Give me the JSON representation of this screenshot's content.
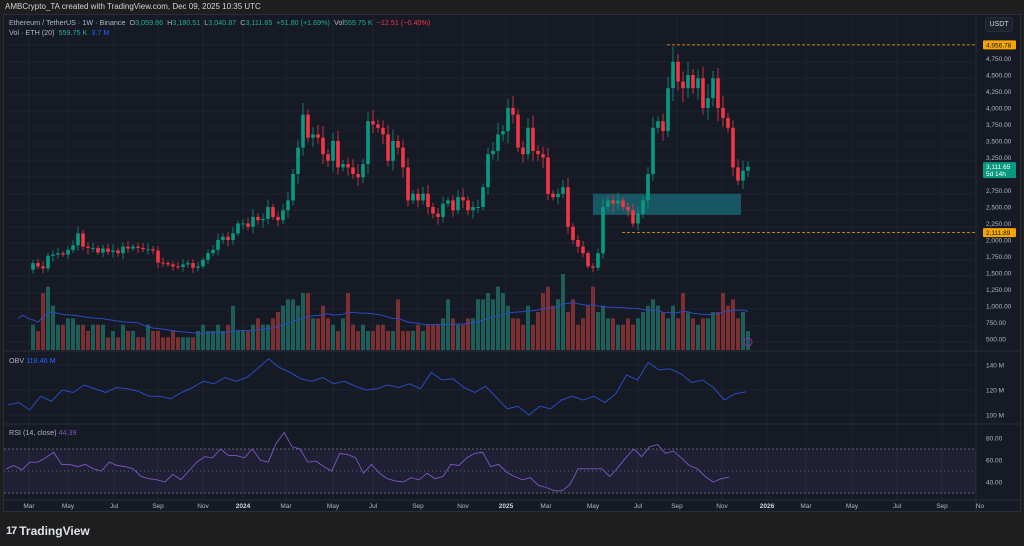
{
  "header": {
    "attribution": "AMBCrypto_TA created with TradingView.com, Dec 09, 2025 10:35 UTC"
  },
  "legend": {
    "symbol": "Ethereum / TetherUS · 1W · Binance",
    "o_label": "O",
    "o": "3,059.86",
    "h_label": "H",
    "h": "3,180.51",
    "l_label": "L",
    "l": "3,040.87",
    "c_label": "C",
    "c": "3,111.65",
    "change": "+51.80 (+1.69%)",
    "vol_label": "Vol",
    "vol": "559.75 K",
    "vol_change": "−12.51 (−0.40%)",
    "vol_ind": "Vol · ETH (20)",
    "vol_ind_val1": "559.75 K",
    "vol_ind_val2": "3.7 M",
    "obv": "OBV",
    "obv_val": "118.46 M",
    "rsi": "RSI (14, close)",
    "rsi_val": "44.39"
  },
  "currency": "USDT",
  "price_axis": [
    "4,750.00",
    "4,500.00",
    "4,250.00",
    "4,000.00",
    "3,750.00",
    "3,500.00",
    "3,250.00",
    "2,750.00",
    "2,500.00",
    "2,250.00",
    "2,000.00",
    "1,750.00",
    "1,500.00",
    "1,250.00",
    "1,000.00",
    "750.00",
    "500.00"
  ],
  "price_axis_values": [
    4750,
    4500,
    4250,
    4000,
    3750,
    3500,
    3250,
    2750,
    2500,
    2250,
    2000,
    1750,
    1500,
    1250,
    1000,
    750,
    500
  ],
  "markers": {
    "high": "4,956.78",
    "high_value": 4956.78,
    "low": "2,111.89",
    "low_value": 2111.89,
    "last": "3,111.65",
    "last_value": 3111.65,
    "countdown": "5d 14h"
  },
  "obv_axis": [
    "140 M",
    "120 M",
    "100 M"
  ],
  "rsi_axis": [
    "80.00",
    "60.00",
    "40.00"
  ],
  "time_axis": [
    "Mar",
    "May",
    "Jul",
    "Sep",
    "Nov",
    "2024",
    "Mar",
    "May",
    "Jul",
    "Sep",
    "Nov",
    "2025",
    "Mar",
    "May",
    "Jul",
    "Sep",
    "Nov",
    "2026",
    "Mar",
    "May",
    "Jul",
    "Sep",
    "No"
  ],
  "footer": {
    "brand": "TradingView"
  },
  "colors": {
    "up": "#089981",
    "down": "#f23645",
    "obv": "#2a4bc0",
    "rsi": "#7e57c2",
    "marker": "#f7a600",
    "zone": "#1b6b78"
  },
  "chart_data": {
    "type": "candlestick",
    "interval": "1W",
    "closes": [
      1550,
      1650,
      1600,
      1570,
      1760,
      1780,
      1800,
      1780,
      1850,
      1920,
      2100,
      1900,
      1880,
      1880,
      1810,
      1870,
      1820,
      1840,
      1800,
      1900,
      1870,
      1900,
      1880,
      1860,
      1860,
      1840,
      1660,
      1650,
      1630,
      1600,
      1590,
      1630,
      1650,
      1580,
      1600,
      1700,
      1800,
      1850,
      2000,
      2050,
      2000,
      2100,
      2250,
      2250,
      2200,
      2350,
      2300,
      2320,
      2500,
      2350,
      2300,
      2450,
      2600,
      3000,
      3400,
      3900,
      3550,
      3600,
      3550,
      3300,
      3200,
      3500,
      3100,
      3150,
      3100,
      3000,
      2950,
      3150,
      3800,
      3750,
      3700,
      3600,
      3200,
      3500,
      3400,
      3100,
      2600,
      2700,
      2600,
      2700,
      2500,
      2400,
      2350,
      2550,
      2600,
      2450,
      2650,
      2600,
      2450,
      2500,
      2500,
      2800,
      3300,
      3350,
      3600,
      3650,
      4000,
      3900,
      3400,
      3300,
      3700,
      3350,
      3300,
      3250,
      2700,
      2650,
      2700,
      2800,
      2200,
      2000,
      1900,
      1800,
      1600,
      1580,
      1800,
      2500,
      2600,
      2550,
      2600,
      2500,
      2450,
      2250,
      2400,
      2600,
      3000,
      3700,
      3800,
      3650,
      4300,
      4700,
      4400,
      4300,
      4500,
      4300,
      4450,
      4000,
      4150,
      4450,
      4000,
      3850,
      3700,
      3100,
      2900,
      3050,
      3111.65
    ],
    "volumes_m": [
      5,
      6,
      4,
      4,
      3,
      9,
      10,
      7,
      4,
      4,
      5,
      5,
      4,
      4,
      3,
      4,
      4,
      4,
      2,
      3,
      2,
      4,
      3,
      3,
      2,
      2,
      4,
      3,
      3,
      2,
      2,
      3,
      2,
      2,
      2,
      2,
      3,
      4,
      3,
      3,
      4,
      3,
      4,
      7,
      3,
      3,
      3,
      4,
      5,
      4,
      4,
      5,
      6,
      7,
      8,
      8,
      7,
      9,
      9,
      5,
      5,
      7,
      5,
      4,
      3,
      5,
      9,
      4,
      3,
      4,
      3,
      3,
      4,
      4,
      3,
      3,
      8,
      3,
      3,
      3,
      4,
      3,
      4,
      4,
      4,
      5,
      8,
      5,
      4,
      4,
      5,
      5,
      8,
      8,
      9,
      8,
      10,
      9,
      7,
      5,
      5,
      4,
      7,
      4,
      6,
      9,
      10,
      7,
      8,
      12,
      6,
      8,
      4,
      5,
      7,
      10,
      6,
      7,
      5,
      5,
      4,
      4,
      5,
      4,
      5,
      6,
      7,
      8,
      7,
      6,
      5,
      7,
      5,
      9,
      6,
      5,
      4,
      5,
      5,
      6,
      6,
      9,
      7,
      8,
      5,
      6,
      3
    ],
    "obv_m": [
      108,
      110,
      104,
      115,
      111,
      120,
      118,
      124,
      121,
      118,
      122,
      121,
      119,
      115,
      115,
      113,
      118,
      122,
      127,
      125,
      130,
      127,
      130,
      137,
      145,
      138,
      134,
      129,
      127,
      130,
      125,
      127,
      123,
      120,
      121,
      124,
      122,
      125,
      121,
      134,
      128,
      129,
      122,
      118,
      123,
      114,
      105,
      107,
      100,
      107,
      105,
      112,
      115,
      112,
      115,
      110,
      117,
      132,
      128,
      142,
      136,
      137,
      133,
      126,
      128,
      122,
      112,
      117,
      118.46
    ],
    "rsi": [
      52,
      55,
      51,
      58,
      58,
      62,
      67,
      56,
      56,
      54,
      56,
      52,
      50,
      58,
      55,
      54,
      52,
      45,
      43,
      42,
      40,
      47,
      42,
      50,
      58,
      63,
      62,
      70,
      64,
      64,
      62,
      70,
      60,
      58,
      75,
      85,
      72,
      70,
      58,
      59,
      54,
      50,
      66,
      65,
      62,
      48,
      56,
      48,
      43,
      41,
      40,
      44,
      42,
      48,
      43,
      45,
      56,
      55,
      62,
      66,
      67,
      54,
      56,
      49,
      45,
      42,
      44,
      37,
      35,
      32,
      32,
      38,
      52,
      52,
      52,
      52,
      45,
      53,
      62,
      70,
      63,
      72,
      74,
      66,
      68,
      62,
      55,
      52,
      45,
      40,
      43,
      44.39
    ],
    "rsi_bands": [
      70,
      50,
      30
    ],
    "demand_zone": [
      2380,
      2700
    ]
  }
}
